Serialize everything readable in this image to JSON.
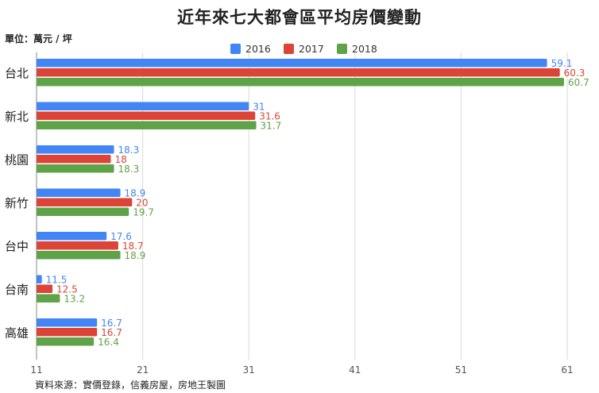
{
  "chart_data": {
    "type": "bar",
    "orientation": "horizontal",
    "title": "近年來七大都會區平均房價變動",
    "unit_label": "單位：萬元 / 坪",
    "source": "資料來源：實價登錄，信義房屋，房地王製圖",
    "categories": [
      "台北",
      "新北",
      "桃園",
      "新竹",
      "台中",
      "台南",
      "高雄"
    ],
    "series": [
      {
        "name": "2016",
        "color": "#4285f4",
        "values": [
          59.1,
          31,
          18.3,
          18.9,
          17.6,
          11.5,
          16.7
        ]
      },
      {
        "name": "2017",
        "color": "#db4437",
        "values": [
          60.3,
          31.6,
          18,
          20,
          18.7,
          12.5,
          16.7
        ]
      },
      {
        "name": "2018",
        "color": "#5fa348",
        "values": [
          60.7,
          31.7,
          18.3,
          19.7,
          18.9,
          13.2,
          16.4
        ]
      }
    ],
    "xlim": [
      11,
      61
    ],
    "xticks": [
      11,
      21,
      31,
      41,
      51,
      61
    ],
    "grid": true,
    "legend_position": "top-center"
  }
}
